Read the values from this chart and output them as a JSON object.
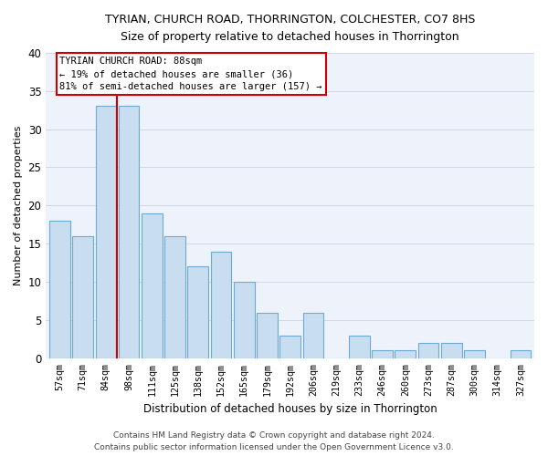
{
  "title": "TYRIAN, CHURCH ROAD, THORRINGTON, COLCHESTER, CO7 8HS",
  "subtitle": "Size of property relative to detached houses in Thorrington",
  "xlabel": "Distribution of detached houses by size in Thorrington",
  "ylabel": "Number of detached properties",
  "categories": [
    "57sqm",
    "71sqm",
    "84sqm",
    "98sqm",
    "111sqm",
    "125sqm",
    "138sqm",
    "152sqm",
    "165sqm",
    "179sqm",
    "192sqm",
    "206sqm",
    "219sqm",
    "233sqm",
    "246sqm",
    "260sqm",
    "273sqm",
    "287sqm",
    "300sqm",
    "314sqm",
    "327sqm"
  ],
  "values": [
    18,
    16,
    33,
    33,
    19,
    16,
    12,
    14,
    10,
    6,
    3,
    6,
    0,
    3,
    1,
    1,
    2,
    2,
    1,
    0,
    1
  ],
  "bar_color": "#c9ddf0",
  "bar_edge_color": "#6aaad4",
  "red_line_color": "#cc0000",
  "red_line_x": 2.5,
  "annotation_line1": "TYRIAN CHURCH ROAD: 88sqm",
  "annotation_line2": "← 19% of detached houses are smaller (36)",
  "annotation_line3": "81% of semi-detached houses are larger (157) →",
  "annotation_box_color": "#ffffff",
  "annotation_box_edge": "#cc0000",
  "ylim": [
    0,
    40
  ],
  "yticks": [
    0,
    5,
    10,
    15,
    20,
    25,
    30,
    35,
    40
  ],
  "background_color": "#eef2fa",
  "footer1": "Contains HM Land Registry data © Crown copyright and database right 2024.",
  "footer2": "Contains public sector information licensed under the Open Government Licence v3.0."
}
